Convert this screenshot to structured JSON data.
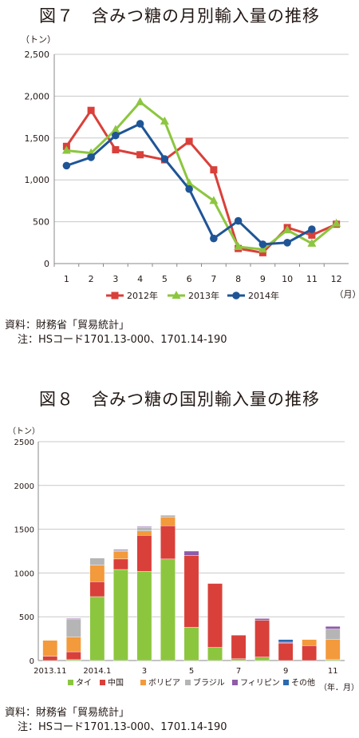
{
  "chart_data": [
    {
      "type": "line",
      "title": "図７　含みつ糖の月別輸入量の推移",
      "unit_label": "（トン）",
      "x_unit_label": "（月）",
      "categories": [
        "1",
        "2",
        "3",
        "4",
        "5",
        "6",
        "7",
        "8",
        "9",
        "10",
        "11",
        "12"
      ],
      "ylim": [
        0,
        2500
      ],
      "yticks": [
        "0",
        "500",
        "1,000",
        "1,500",
        "2,000",
        "2,500"
      ],
      "ytick_values": [
        0,
        500,
        1000,
        1500,
        2000,
        2500
      ],
      "grid": true,
      "legend_position": "bottom",
      "series": [
        {
          "name": "2012年",
          "color": "#d9403a",
          "marker": "square",
          "values": [
            1400,
            1830,
            1360,
            1300,
            1240,
            1460,
            1120,
            180,
            130,
            430,
            340,
            470
          ]
        },
        {
          "name": "2013年",
          "color": "#8cc63f",
          "marker": "triangle",
          "values": [
            1350,
            1320,
            1600,
            1930,
            1700,
            960,
            750,
            200,
            170,
            400,
            240,
            480
          ]
        },
        {
          "name": "2014年",
          "color": "#1f5596",
          "marker": "circle",
          "values": [
            1170,
            1270,
            1530,
            1670,
            1250,
            890,
            300,
            510,
            230,
            250,
            410,
            null
          ]
        }
      ],
      "source_note": "資料：財務省「貿易統計」",
      "note": "注：HSコード1701.13-000、1701.14-190"
    },
    {
      "type": "bar",
      "stacked": true,
      "title": "図８　含みつ糖の国別輸入量の推移",
      "unit_label": "（トン）",
      "x_unit_label": "（年．月）",
      "categories": [
        "2013.11",
        "2013.12",
        "2014.1",
        "2",
        "3",
        "4",
        "5",
        "6",
        "7",
        "8",
        "9",
        "10",
        "11"
      ],
      "category_labels": [
        "2013.11",
        "",
        "2014.1",
        "",
        "3",
        "",
        "5",
        "",
        "7",
        "",
        "9",
        "",
        "11"
      ],
      "ylim": [
        0,
        2500
      ],
      "yticks": [
        "0",
        "500",
        "1000",
        "1500",
        "2000",
        "2500"
      ],
      "ytick_values": [
        0,
        500,
        1000,
        1500,
        2000,
        2500
      ],
      "grid": true,
      "legend_position": "bottom",
      "series": [
        {
          "name": "タイ",
          "color": "#8cc63f",
          "values": [
            0,
            10,
            730,
            1040,
            1020,
            1160,
            380,
            150,
            20,
            40,
            0,
            0,
            10
          ]
        },
        {
          "name": "中国",
          "color": "#d9403a",
          "values": [
            50,
            90,
            170,
            120,
            410,
            380,
            820,
            730,
            270,
            420,
            200,
            170,
            0
          ]
        },
        {
          "name": "ボリビア",
          "color": "#f39a3c",
          "values": [
            180,
            170,
            190,
            90,
            50,
            100,
            0,
            0,
            0,
            0,
            0,
            70,
            230
          ]
        },
        {
          "name": "ブラジル",
          "color": "#b5b5b5",
          "values": [
            0,
            200,
            80,
            10,
            40,
            20,
            0,
            0,
            0,
            0,
            0,
            0,
            120
          ]
        },
        {
          "name": "フィリピン",
          "color": "#8e5ca8",
          "values": [
            0,
            10,
            0,
            10,
            10,
            0,
            50,
            0,
            0,
            20,
            10,
            0,
            30
          ]
        },
        {
          "name": "その他",
          "color": "#2a6aad",
          "values": [
            0,
            0,
            0,
            0,
            0,
            0,
            0,
            0,
            0,
            0,
            30,
            0,
            0
          ]
        }
      ],
      "source_note": "資料：財務省「貿易統計」",
      "note": "注：HSコード1701.13-000、1701.14-190"
    }
  ]
}
